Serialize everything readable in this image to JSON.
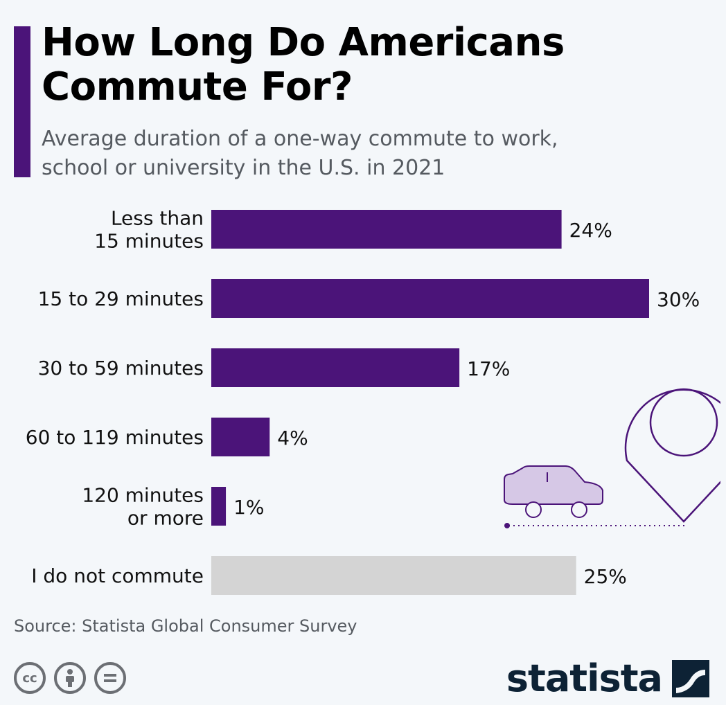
{
  "header": {
    "title_line1": "How Long Do Americans",
    "title_line2": "Commute For?",
    "subtitle_line1": "Average duration of a one-way commute to work,",
    "subtitle_line2": "school or university in the U.S. in 2021"
  },
  "colors": {
    "accent": "#4b1479",
    "bar": "#4b1479",
    "bar_muted": "#d4d4d4",
    "car_fill": "#d6c8e6"
  },
  "chart_data": {
    "type": "bar",
    "orientation": "horizontal",
    "categories": [
      [
        "Less than",
        "15 minutes"
      ],
      [
        "15 to 29 minutes"
      ],
      [
        "30 to 59 minutes"
      ],
      [
        "60 to 119 minutes"
      ],
      [
        "120 minutes",
        "or more"
      ],
      [
        "I do not commute"
      ]
    ],
    "values": [
      24,
      30,
      17,
      4,
      1,
      25
    ],
    "value_labels": [
      "24%",
      "30%",
      "17%",
      "4%",
      "1%",
      "25%"
    ],
    "highlight": [
      true,
      true,
      true,
      true,
      true,
      false
    ],
    "unit": "%",
    "xlim": [
      0,
      30
    ],
    "grid": false,
    "legend": "none"
  },
  "footer": {
    "source": "Source: Statista Global Consumer Survey",
    "brand": "statista",
    "license_icons": [
      "cc-icon",
      "by-icon",
      "nd-icon"
    ]
  }
}
